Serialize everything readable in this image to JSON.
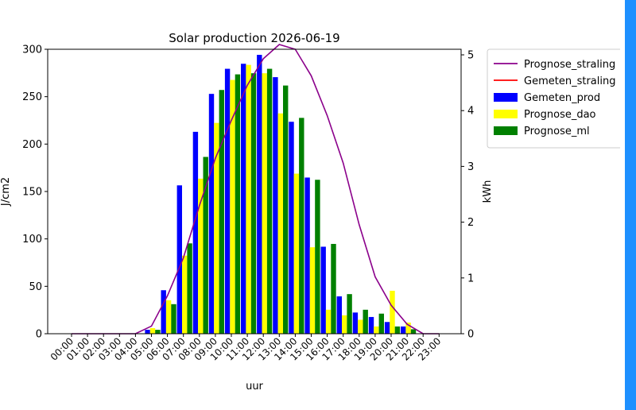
{
  "chart_data": {
    "type": "bar",
    "title": "Solar production 2026-06-19",
    "xlabel": "uur",
    "ylabel_left": "J/cm2",
    "ylabel_right": "kWh",
    "ylim_left": [
      0,
      300
    ],
    "ylim_right": [
      0,
      5.1
    ],
    "yticks_left": [
      0,
      50,
      100,
      150,
      200,
      250,
      300
    ],
    "yticks_right": [
      0,
      1,
      2,
      3,
      4,
      5
    ],
    "grid": false,
    "legend_position": "outside-right",
    "categories": [
      "00:00",
      "01:00",
      "02:00",
      "03:00",
      "04:00",
      "05:00",
      "06:00",
      "07:00",
      "08:00",
      "09:00",
      "10:00",
      "11:00",
      "12:00",
      "13:00",
      "14:00",
      "15:00",
      "16:00",
      "17:00",
      "18:00",
      "19:00",
      "20:00",
      "21:00",
      "22:00",
      "23:00"
    ],
    "lines": [
      {
        "name": "Prognose_straling",
        "color": "#8b008b",
        "axis": "left",
        "values": [
          0,
          0,
          0,
          0,
          0,
          8,
          40,
          80,
          135,
          185,
          225,
          262,
          290,
          305,
          300,
          272,
          230,
          180,
          115,
          60,
          30,
          10,
          0,
          0
        ]
      },
      {
        "name": "Gemeten_straling",
        "color": "#ff0000",
        "axis": "left",
        "values": []
      }
    ],
    "series": [
      {
        "name": "Gemeten_prod",
        "color": "#0000ff",
        "axis": "right",
        "values": [
          0,
          0,
          0,
          0,
          0,
          0.07,
          0.78,
          2.66,
          3.62,
          4.3,
          4.75,
          4.84,
          5.0,
          4.6,
          3.8,
          2.8,
          1.56,
          0.67,
          0.38,
          0.3,
          0.21,
          0.13,
          0,
          0
        ]
      },
      {
        "name": "Prognose_dao",
        "color": "#ffff00",
        "axis": "right",
        "values": [
          0,
          0,
          0,
          0,
          0,
          0.1,
          0.6,
          1.4,
          2.78,
          3.78,
          4.55,
          4.82,
          4.67,
          3.95,
          2.87,
          1.55,
          0.43,
          0.33,
          0.25,
          0.13,
          0.77,
          0.2,
          0,
          0
        ]
      },
      {
        "name": "Prognose_ml",
        "color": "#008000",
        "axis": "right",
        "values": [
          0,
          0,
          0,
          0,
          0,
          0.07,
          0.53,
          1.62,
          3.17,
          4.37,
          4.65,
          4.67,
          4.75,
          4.45,
          3.87,
          2.76,
          1.61,
          0.71,
          0.43,
          0.36,
          0.13,
          0.08,
          0,
          0
        ]
      }
    ]
  }
}
